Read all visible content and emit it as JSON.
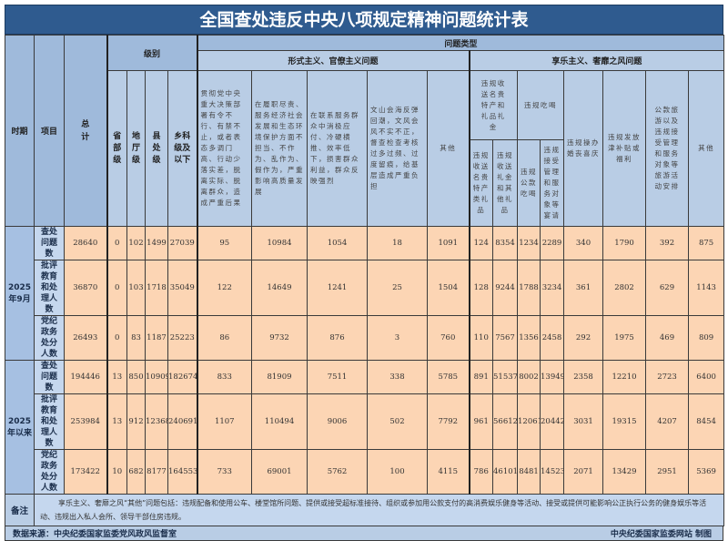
{
  "title": "全国查处违反中央八项规定精神问题统计表",
  "header": {
    "period": "时期",
    "item": "项目",
    "total": "总计",
    "level": "级别",
    "levels": [
      "省部级",
      "地厅级",
      "县处级",
      "乡科级及以下"
    ],
    "problem_type": "问题类型",
    "formalism": "形式主义、官僚主义问题",
    "hedonism": "享乐主义、奢靡之风问题",
    "formalism_cols": [
      "贯彻党中央重大决策部署有令不行、有禁不止，或者表态多调门高、行动少落实差，脱离实际、脱离群众，造成严重后果",
      "在履职尽责、服务经济社会发展和生态环境保护方面不担当、不作为、乱作为、假作为，严重影响高质量发展",
      "在联系服务群众中消极应付、冷硬横推、效率低下，损害群众利益，群众反映强烈",
      "文山会海反弹回潮，文风会风不实不正，督查检查考核过多过频、过度留痕，给基层造成严重负担",
      "其他"
    ],
    "gifts_group": "违规收送名贵特产和礼品礼金",
    "gifts_cols": [
      "违规收送名贵特产类礼品",
      "违规收送礼金和其他礼品"
    ],
    "dining_group": "违规吃喝",
    "dining_cols": [
      "违规公款吃喝",
      "违规接受管理和服务对象等宴请"
    ],
    "hedonism_cols": [
      "违规操办婚丧喜庆",
      "违规发放津补贴或福利",
      "公款旅游以及违规接受管理和服务对象等旅游活动安排",
      "其他"
    ]
  },
  "groups": [
    {
      "period": "2025年9月",
      "rows": [
        {
          "item": "查处问题数",
          "values": [
            28640,
            0,
            102,
            1499,
            27039,
            95,
            10984,
            1054,
            18,
            1091,
            124,
            8354,
            1234,
            2289,
            340,
            1790,
            392,
            875
          ]
        },
        {
          "item": "批评教育和处理人数",
          "values": [
            36870,
            0,
            103,
            1718,
            35049,
            122,
            14649,
            1241,
            25,
            1504,
            128,
            9244,
            1788,
            3234,
            361,
            2802,
            629,
            1143
          ]
        },
        {
          "item": "党纪政务处分人数",
          "values": [
            26493,
            0,
            83,
            1187,
            25223,
            86,
            9732,
            876,
            3,
            760,
            110,
            7567,
            1356,
            2458,
            292,
            1975,
            469,
            809
          ]
        }
      ]
    },
    {
      "period": "2025年以来",
      "rows": [
        {
          "item": "查处问题数",
          "values": [
            194446,
            13,
            850,
            10909,
            182674,
            833,
            81909,
            7511,
            338,
            5785,
            891,
            51537,
            8002,
            13949,
            2358,
            12210,
            2723,
            6400
          ]
        },
        {
          "item": "批评教育和处理人数",
          "values": [
            253984,
            13,
            912,
            12368,
            240691,
            1107,
            110494,
            9006,
            502,
            7792,
            961,
            56612,
            12061,
            20442,
            3031,
            19315,
            4207,
            8454
          ]
        },
        {
          "item": "党纪政务处分人数",
          "values": [
            173422,
            10,
            682,
            8177,
            164553,
            733,
            69001,
            5762,
            100,
            4115,
            786,
            46101,
            8481,
            14523,
            2071,
            13429,
            2951,
            5369
          ]
        }
      ]
    }
  ],
  "note": {
    "label": "备注",
    "text": "享乐主义、奢靡之风“其他”问题包括：违规配备和使用公车、楼堂馆所问题、提供或接受超标准接待、组织或参加用公款支付的高消费娱乐健身等活动、接受或提供可能影响公正执行公务的健身娱乐等活动、违规出入私人会所、领导干部住房违规。"
  },
  "footer": {
    "source": "数据来源：中央纪委国家监委党风政风监督室",
    "credit": "中央纪委国家监委网站 制图"
  },
  "colors": {
    "title_bg": "#2f5b8f",
    "header_bg": "#b9cde5",
    "data_bg": "#fcd5b4"
  }
}
